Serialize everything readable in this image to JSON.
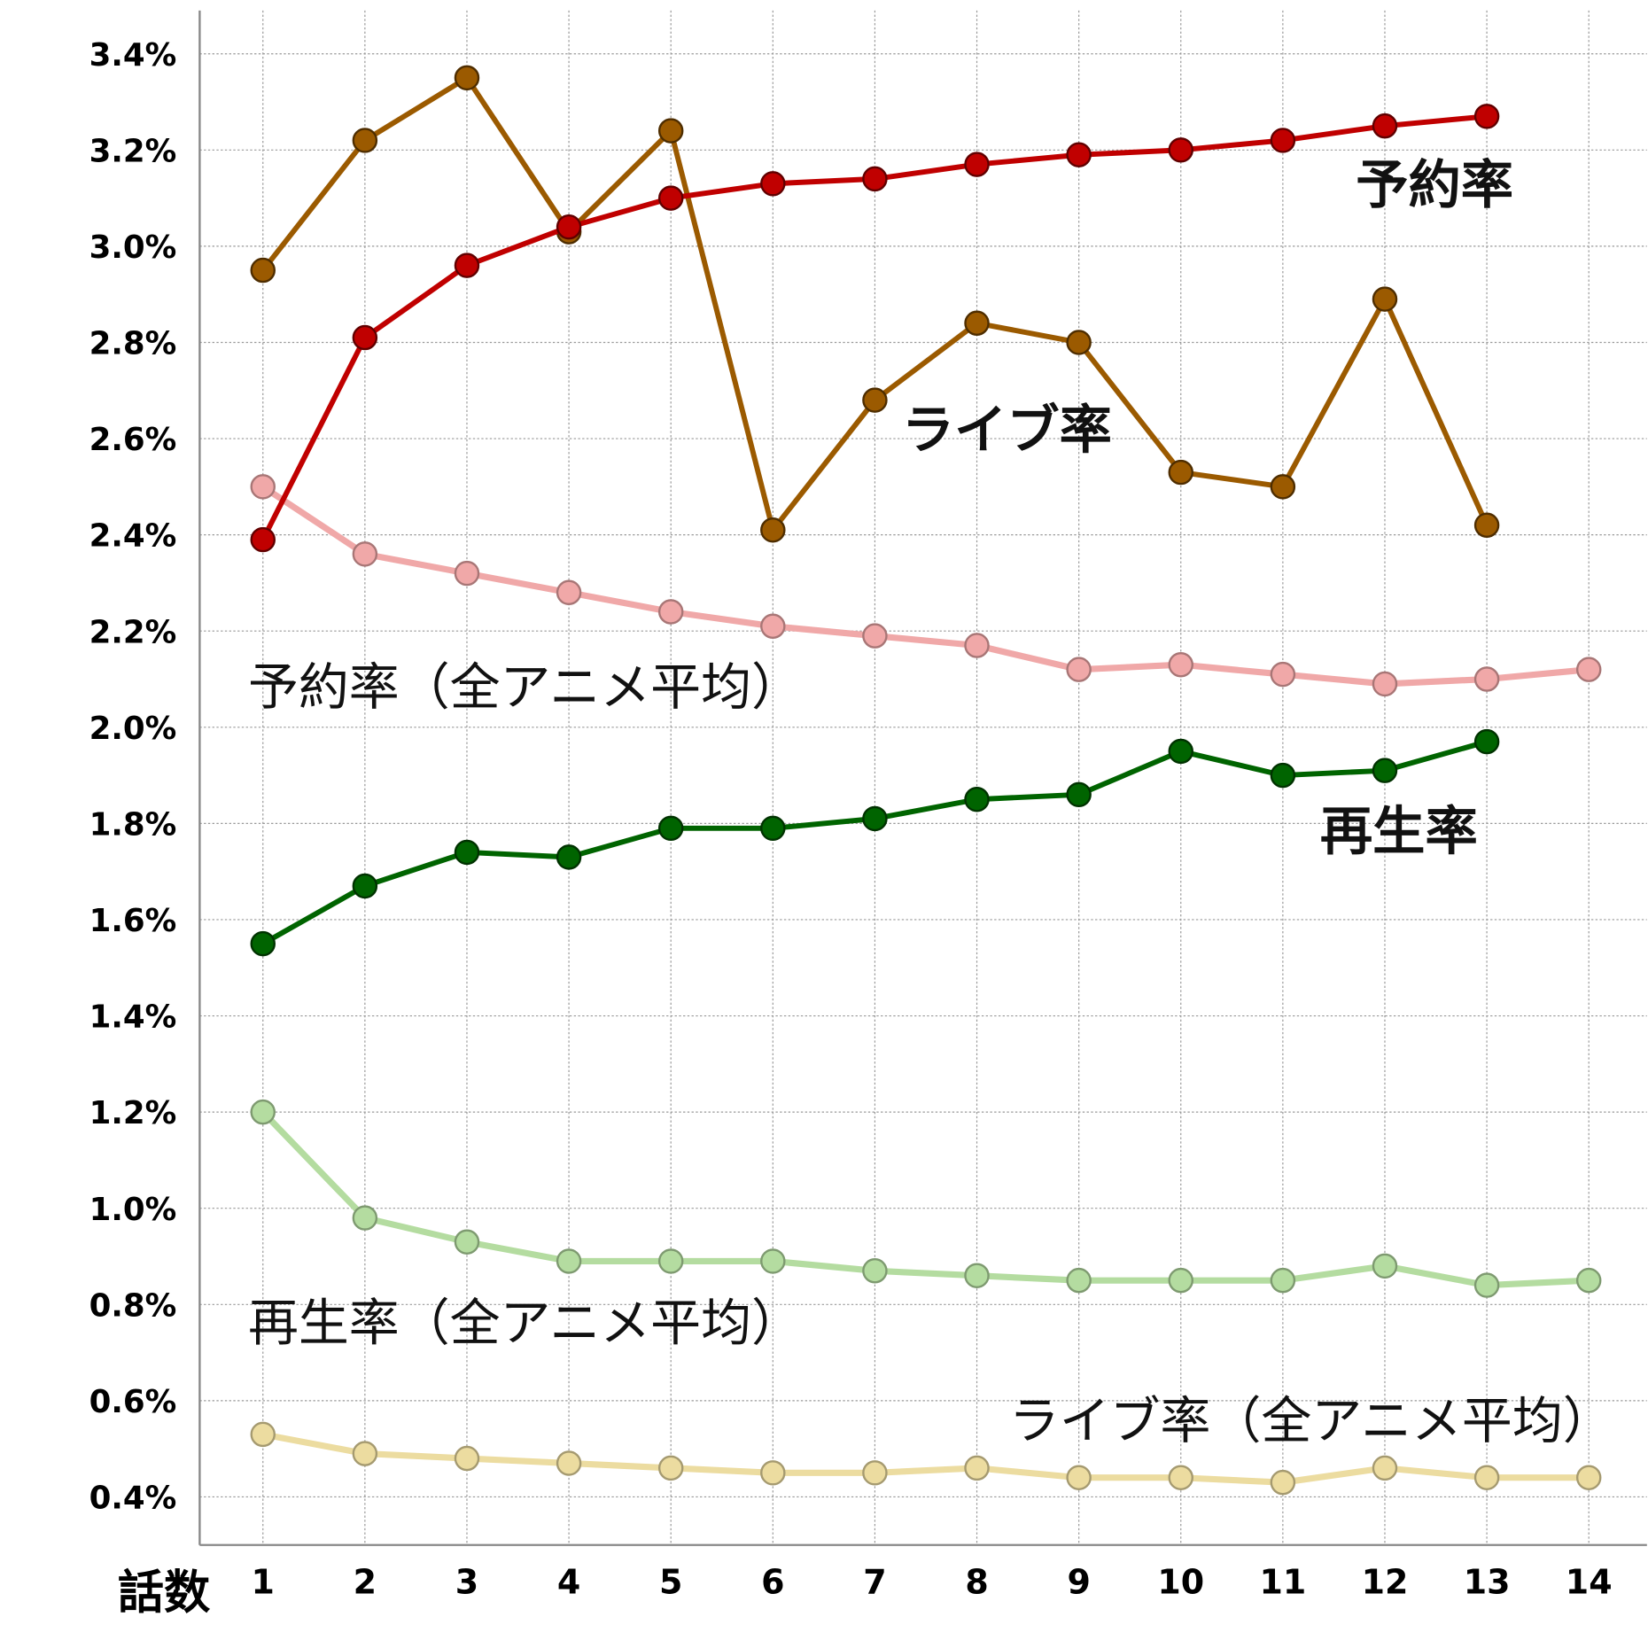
{
  "chart_data": {
    "type": "line",
    "x_label": "話数",
    "x": [
      1,
      2,
      3,
      4,
      5,
      6,
      7,
      8,
      9,
      10,
      11,
      12,
      13,
      14
    ],
    "xlim": [
      0.38,
      14.57
    ],
    "xticks": [
      1,
      2,
      3,
      4,
      5,
      6,
      7,
      8,
      9,
      10,
      11,
      12,
      13,
      14
    ],
    "ylim": [
      0.3,
      3.49
    ],
    "yticks": [
      {
        "value": 0.4,
        "label": "0.4%"
      },
      {
        "value": 0.6,
        "label": "0.6%"
      },
      {
        "value": 0.8,
        "label": "0.8%"
      },
      {
        "value": 1.0,
        "label": "1.0%"
      },
      {
        "value": 1.2,
        "label": "1.2%"
      },
      {
        "value": 1.4,
        "label": "1.4%"
      },
      {
        "value": 1.6,
        "label": "1.6%"
      },
      {
        "value": 1.8,
        "label": "1.8%"
      },
      {
        "value": 2.0,
        "label": "2.0%"
      },
      {
        "value": 2.2,
        "label": "2.2%"
      },
      {
        "value": 2.4,
        "label": "2.4%"
      },
      {
        "value": 2.6,
        "label": "2.6%"
      },
      {
        "value": 2.8,
        "label": "2.8%"
      },
      {
        "value": 3.0,
        "label": "3.0%"
      },
      {
        "value": 3.2,
        "label": "3.2%"
      },
      {
        "value": 3.4,
        "label": "3.4%"
      }
    ],
    "grid": true,
    "series": [
      {
        "name": "ライブ率（全アニメ平均）",
        "color": "#ecdca0",
        "values": [
          0.53,
          0.49,
          0.48,
          0.47,
          0.46,
          0.45,
          0.45,
          0.46,
          0.44,
          0.44,
          0.43,
          0.46,
          0.44,
          0.44
        ]
      },
      {
        "name": "再生率（全アニメ平均）",
        "color": "#b4dca0",
        "values": [
          1.2,
          0.98,
          0.93,
          0.89,
          0.89,
          0.89,
          0.87,
          0.86,
          0.85,
          0.85,
          0.85,
          0.88,
          0.84,
          0.85
        ]
      },
      {
        "name": "予約率（全アニメ平均）",
        "color": "#f0a8a8",
        "values": [
          2.5,
          2.36,
          2.32,
          2.28,
          2.24,
          2.21,
          2.19,
          2.17,
          2.12,
          2.13,
          2.11,
          2.09,
          2.1,
          2.12
        ]
      },
      {
        "name": "再生率",
        "color": "#006400",
        "values": [
          1.55,
          1.67,
          1.74,
          1.73,
          1.79,
          1.79,
          1.81,
          1.85,
          1.86,
          1.95,
          1.9,
          1.91,
          1.97,
          null
        ]
      },
      {
        "name": "ライブ率",
        "color": "#9b5a00",
        "values": [
          2.95,
          3.22,
          3.35,
          3.03,
          3.24,
          2.41,
          2.68,
          2.84,
          2.8,
          2.53,
          2.5,
          2.89,
          2.42,
          null
        ]
      },
      {
        "name": "予約率",
        "color": "#c00000",
        "values": [
          2.39,
          2.81,
          2.96,
          3.04,
          3.1,
          3.13,
          3.14,
          3.17,
          3.19,
          3.2,
          3.22,
          3.25,
          3.27,
          null
        ]
      }
    ]
  }
}
